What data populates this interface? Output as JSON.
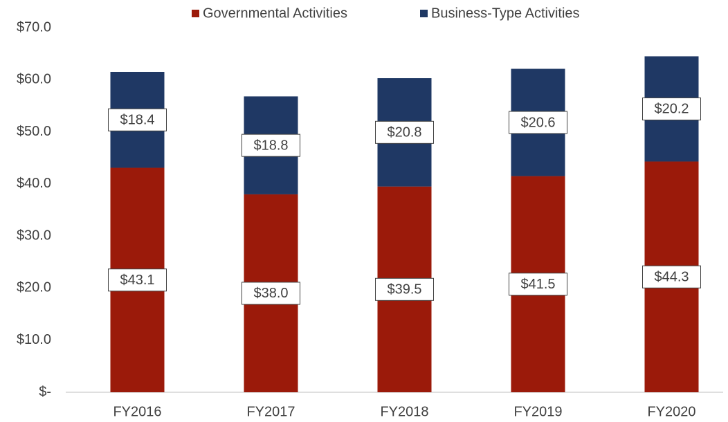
{
  "chart_data": {
    "type": "bar",
    "stacked": true,
    "categories": [
      "FY2016",
      "FY2017",
      "FY2018",
      "FY2019",
      "FY2020"
    ],
    "series": [
      {
        "name": "Governmental Activities",
        "color": "#9b1a0a",
        "values": [
          43.1,
          38.0,
          39.5,
          41.5,
          44.3
        ],
        "value_labels": [
          "$43.1",
          "$38.0",
          "$39.5",
          "$41.5",
          "$44.3"
        ]
      },
      {
        "name": "Business-Type Activities",
        "color": "#1f3864",
        "values": [
          18.4,
          18.8,
          20.8,
          20.6,
          20.2
        ],
        "value_labels": [
          "$18.4",
          "$18.8",
          "$20.8",
          "$20.6",
          "$20.2"
        ]
      }
    ],
    "ylim": [
      0,
      70
    ],
    "yticks": [
      {
        "value": 0,
        "label": "$-"
      },
      {
        "value": 10,
        "label": "$10.0"
      },
      {
        "value": 20,
        "label": "$20.0"
      },
      {
        "value": 30,
        "label": "$30.0"
      },
      {
        "value": 40,
        "label": "$40.0"
      },
      {
        "value": 50,
        "label": "$50.0"
      },
      {
        "value": 60,
        "label": "$60.0"
      },
      {
        "value": 70,
        "label": "$70.0"
      }
    ],
    "grid": false,
    "legend": "top"
  }
}
